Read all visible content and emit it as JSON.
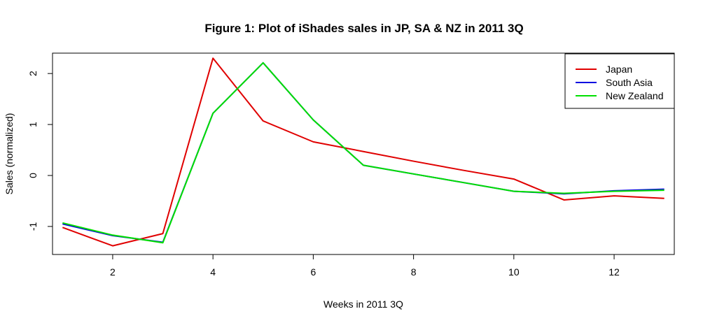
{
  "chart_data": {
    "type": "line",
    "title": "Figure 1: Plot of iShades sales in JP, SA & NZ in 2011 3Q",
    "xlabel": "Weeks in 2011 3Q",
    "ylabel": "Sales (normalized)",
    "xlim": [
      0.8,
      13.2
    ],
    "ylim": [
      -1.55,
      2.4
    ],
    "xticks": [
      2,
      4,
      6,
      8,
      10,
      12
    ],
    "yticks": [
      -1,
      0,
      1,
      2
    ],
    "grid": false,
    "legend_position": "top-right",
    "x": [
      1,
      2,
      3,
      4,
      5,
      6,
      7,
      8,
      9,
      10,
      11,
      12,
      13
    ],
    "series": [
      {
        "name": "Japan",
        "color": "#e00000",
        "values": [
          -1.02,
          -1.38,
          -1.14,
          2.3,
          1.07,
          0.66,
          0.47,
          0.28,
          0.1,
          -0.07,
          -0.48,
          -0.4,
          -0.45
        ]
      },
      {
        "name": "South Asia",
        "color": "#0000e0",
        "values": [
          -0.95,
          -1.18,
          -1.31,
          1.22,
          2.21,
          1.09,
          0.2,
          0.03,
          -0.14,
          -0.31,
          -0.36,
          -0.3,
          -0.27
        ]
      },
      {
        "name": "New Zealand",
        "color": "#00e000",
        "values": [
          -0.93,
          -1.17,
          -1.32,
          1.22,
          2.21,
          1.09,
          0.2,
          0.03,
          -0.14,
          -0.31,
          -0.35,
          -0.31,
          -0.29
        ]
      }
    ]
  }
}
